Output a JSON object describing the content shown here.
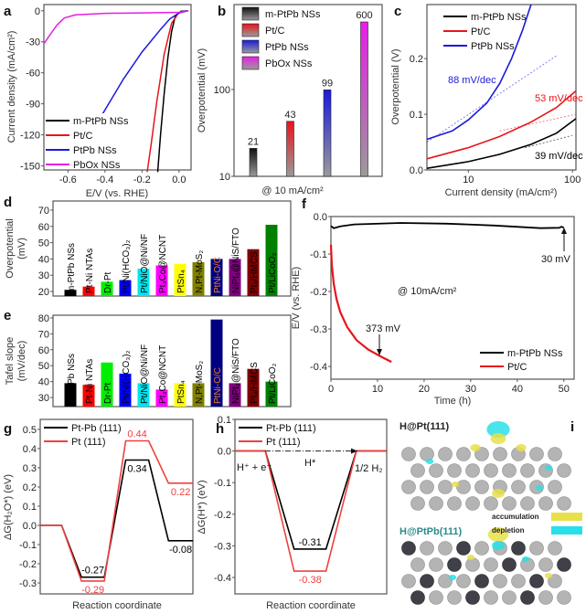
{
  "chart_data": [
    {
      "id": "a",
      "type": "line",
      "panel_label": "a",
      "xlabel": "E/V (vs. RHE)",
      "ylabel": "Current density (mA/cm²)",
      "xlim": [
        -0.73,
        0.065
      ],
      "ylim": [
        -154,
        6
      ],
      "xticks": [
        -0.6,
        -0.4,
        -0.2,
        0.0
      ],
      "xtick_labels": [
        "-0.6",
        "-0.4",
        "-0.2",
        "0.0"
      ],
      "yticks": [
        0,
        -30,
        -60,
        -90,
        -120,
        -150
      ],
      "ytick_labels": [
        "0",
        "-30",
        "-60",
        "-90",
        "-120",
        "-150"
      ],
      "legend": "bottom-left",
      "series": [
        {
          "name": "m-PtPb NSs",
          "color": "#000000",
          "points": [
            [
              0.05,
              0
            ],
            [
              0.01,
              -0.5
            ],
            [
              -0.02,
              -5
            ],
            [
              -0.04,
              -20
            ],
            [
              -0.06,
              -45
            ],
            [
              -0.08,
              -80
            ],
            [
              -0.1,
              -120
            ],
            [
              -0.115,
              -156
            ]
          ]
        },
        {
          "name": "Pt/C",
          "color": "#e8141b",
          "points": [
            [
              0.05,
              0
            ],
            [
              0.0,
              -1.5
            ],
            [
              -0.04,
              -12
            ],
            [
              -0.08,
              -42
            ],
            [
              -0.12,
              -88
            ],
            [
              -0.15,
              -128
            ],
            [
              -0.172,
              -156
            ]
          ]
        },
        {
          "name": "PtPb NSs",
          "color": "#1a1adc",
          "points": [
            [
              0.05,
              0
            ],
            [
              0.0,
              -2
            ],
            [
              -0.05,
              -8
            ],
            [
              -0.1,
              -18
            ],
            [
              -0.2,
              -40
            ],
            [
              -0.3,
              -66
            ],
            [
              -0.4,
              -96
            ],
            [
              -0.46,
              -114
            ]
          ]
        },
        {
          "name": "PbOx NSs",
          "color": "#e61ee6",
          "points": [
            [
              -0.73,
              -32
            ],
            [
              -0.7,
              -24
            ],
            [
              -0.66,
              -14
            ],
            [
              -0.62,
              -7
            ],
            [
              -0.56,
              -4
            ],
            [
              -0.4,
              -2.5
            ],
            [
              -0.2,
              -2
            ],
            [
              0.0,
              -1.5
            ],
            [
              0.05,
              0
            ]
          ]
        }
      ]
    },
    {
      "id": "b",
      "type": "bar",
      "panel_label": "b",
      "xlabel": "@ 10 mA/cm²",
      "ylabel": "Overpotential (mV)",
      "yscale": "log",
      "ylim": [
        10,
        950
      ],
      "yticks": [
        10,
        100
      ],
      "ytick_labels": [
        "10",
        "100"
      ],
      "legend": "top-left",
      "categories": [
        "m-PtPb NSs",
        "Pt/C",
        "PtPb NSs",
        "PbOx NSs"
      ],
      "values": [
        21,
        43,
        99,
        600
      ],
      "data_labels": [
        "21",
        "43",
        "99",
        "600"
      ],
      "colors": [
        "#111111",
        "#e8141b",
        "#1a1adc",
        "#e61ee6"
      ]
    },
    {
      "id": "c",
      "type": "line",
      "panel_label": "c",
      "xlabel": "Current density (mA/cm²)",
      "ylabel": "Overpotential (V)",
      "xscale": "log",
      "xlim": [
        4,
        108
      ],
      "ylim": [
        0,
        0.297
      ],
      "xticks": [
        10,
        100
      ],
      "xtick_labels": [
        "10",
        "100"
      ],
      "yticks": [
        0.0,
        0.1,
        0.2
      ],
      "ytick_labels": [
        "0.0",
        "0.1",
        "0.2"
      ],
      "legend": "top-left",
      "series": [
        {
          "name": "m-PtPb NSs",
          "color": "#000000",
          "tafel": "39 mV/dec",
          "points": [
            [
              4,
              0.003
            ],
            [
              10,
              0.015
            ],
            [
              20,
              0.028
            ],
            [
              40,
              0.046
            ],
            [
              70,
              0.066
            ],
            [
              108,
              0.092
            ]
          ],
          "fit": [
            [
              35,
              0.04
            ],
            [
              100,
              0.062
            ]
          ]
        },
        {
          "name": "Pt/C",
          "color": "#e8141b",
          "tafel": "53 mV/dec",
          "points": [
            [
              4,
              0.02
            ],
            [
              10,
              0.04
            ],
            [
              20,
              0.06
            ],
            [
              40,
              0.086
            ],
            [
              70,
              0.112
            ],
            [
              108,
              0.142
            ]
          ],
          "fit": [
            [
              20,
              0.07
            ],
            [
              108,
              0.1
            ]
          ]
        },
        {
          "name": "PtPb NSs",
          "color": "#1a1adc",
          "tafel": "88 mV/dec",
          "points": [
            [
              4,
              0.055
            ],
            [
              7,
              0.07
            ],
            [
              10,
              0.09
            ],
            [
              15,
              0.12
            ],
            [
              20,
              0.155
            ],
            [
              26,
              0.2
            ],
            [
              33,
              0.25
            ],
            [
              40,
              0.297
            ]
          ],
          "fit": [
            [
              4,
              0.05
            ],
            [
              70,
              0.205
            ]
          ]
        }
      ]
    },
    {
      "id": "d",
      "type": "bar",
      "panel_label": "d",
      "ylabel": [
        "Overpotential",
        "(mV)"
      ],
      "ylim": [
        17.2,
        75.6
      ],
      "yticks": [
        20,
        30,
        40,
        50,
        60,
        70
      ],
      "ytick_labels": [
        "20",
        "30",
        "40",
        "50",
        "60",
        "70"
      ],
      "categories": [
        "m-PtPb NSs",
        "Pt-Ni NTAs",
        "Dr-Pt",
        "Pt/Ni(HCO₃)₂",
        "Pt/NiO@Ni/NF",
        "Pt₃Co@NCNT",
        "PtSn₄",
        "N,Pt-MoS₂",
        "PtNi-O/C",
        "NiPt₃@NiS/FTO",
        "Pt₃/HMCS",
        "Pt/LiCoO₂"
      ],
      "values": [
        21,
        23,
        26,
        27,
        34,
        36,
        37,
        38,
        40,
        40,
        46,
        61
      ],
      "colors": [
        "#000000",
        "#ff0000",
        "#00ee00",
        "#0000ff",
        "#00e5ee",
        "#ff00ff",
        "#ffff00",
        "#808000",
        "#000080",
        "#800080",
        "#800000",
        "#008000"
      ],
      "label_colors": [
        "#000000",
        "#000000",
        "#000000",
        "#000000",
        "#000000",
        "#000000",
        "#000000",
        "#000000",
        "#f08020",
        "#000000",
        "#000000",
        "#000000"
      ]
    },
    {
      "id": "e",
      "type": "bar",
      "panel_label": "e",
      "ylabel": [
        "Tafel slope",
        "(mV/dec)"
      ],
      "ylim": [
        24.3,
        81.7
      ],
      "yticks": [
        30,
        40,
        50,
        60,
        70,
        80
      ],
      "ytick_labels": [
        "30",
        "40",
        "50",
        "60",
        "70",
        "80"
      ],
      "categories": [
        "m-PtPb NSs",
        "Pt-Ni NTAs",
        "Dr-Pt",
        "Pt/Ni(HCO₃)₂",
        "Pt/NiO@Ni/NF",
        "Pt₃Co@NCNT",
        "PtSn₄",
        "N,Pt-MoS₂",
        "PtNi-O/C",
        "NiPt₃@NiS/FTO",
        "Pt₃/HMCS",
        "Pt/LiCoO₂"
      ],
      "values": [
        39,
        38,
        52,
        45,
        39,
        35,
        39,
        39,
        79,
        39,
        48,
        40
      ],
      "colors": [
        "#000000",
        "#ff0000",
        "#00ee00",
        "#0000ff",
        "#00e5ee",
        "#ff00ff",
        "#ffff00",
        "#808000",
        "#000080",
        "#800080",
        "#800000",
        "#008000"
      ],
      "label_colors": [
        "#000000",
        "#000000",
        "#000000",
        "#000000",
        "#000000",
        "#000000",
        "#000000",
        "#000000",
        "#f08020",
        "#000000",
        "#000000",
        "#000000"
      ]
    },
    {
      "id": "f",
      "type": "line",
      "panel_label": "f",
      "xlabel": "Time (h)",
      "ylabel": "E/V (vs. RHE)",
      "xlim": [
        0,
        52.2
      ],
      "ylim": [
        -0.434,
        0
      ],
      "xticks": [
        0,
        10,
        20,
        30,
        40,
        50
      ],
      "xtick_labels": [
        "0",
        "10",
        "20",
        "30",
        "40",
        "50"
      ],
      "yticks": [
        0.0,
        -0.1,
        -0.2,
        -0.3,
        -0.4
      ],
      "ytick_labels": [
        "0.0",
        "-0.1",
        "-0.2",
        "-0.3",
        "-0.4"
      ],
      "legend": "bottom-right",
      "annotations": {
        "condition": "@ 10mA/cm²",
        "ptpb_final": "30 mV",
        "ptc_final": "373 mV"
      },
      "series": [
        {
          "name": "m-PtPb NSs",
          "color": "#000000",
          "points": [
            [
              0,
              -0.025
            ],
            [
              0.6,
              -0.031
            ],
            [
              2,
              -0.026
            ],
            [
              5,
              -0.021
            ],
            [
              15,
              -0.017
            ],
            [
              25,
              -0.019
            ],
            [
              35,
              -0.024
            ],
            [
              45,
              -0.031
            ],
            [
              49,
              -0.03
            ],
            [
              49.5,
              -0.027
            ],
            [
              50,
              -0.03
            ]
          ]
        },
        {
          "name": "Pt/C",
          "color": "#e8141b",
          "points": [
            [
              0,
              -0.075
            ],
            [
              0.2,
              -0.13
            ],
            [
              0.6,
              -0.18
            ],
            [
              1.2,
              -0.22
            ],
            [
              2,
              -0.255
            ],
            [
              3.5,
              -0.295
            ],
            [
              5.5,
              -0.33
            ],
            [
              8,
              -0.355
            ],
            [
              10.5,
              -0.372
            ],
            [
              13,
              -0.388
            ]
          ]
        }
      ]
    },
    {
      "id": "g",
      "type": "line",
      "panel_label": "g",
      "xlabel": "Reaction coordinate",
      "ylabel": "ΔG(H₂O*) (eV)",
      "ylim": [
        -0.357,
        0.552
      ],
      "yticks": [
        0.5,
        0.4,
        0.3,
        0.2,
        0.1,
        0.0,
        -0.1,
        -0.2,
        -0.3
      ],
      "ytick_labels": [
        "0.5",
        "0.4",
        "0.3",
        "0.2",
        "0.1",
        "0.0",
        "-0.1",
        "-0.2",
        "-0.3"
      ],
      "legend": "top-left",
      "series": [
        {
          "name": "Pt-Pb (111)",
          "color": "#000000",
          "levels": [
            0,
            -0.27,
            0.34,
            -0.08
          ],
          "value_labels": [
            null,
            "-0.27",
            "0.34",
            "-0.08"
          ]
        },
        {
          "name": "Pt (111)",
          "color": "#f04040",
          "levels": [
            0,
            -0.29,
            0.44,
            0.22
          ],
          "value_labels": [
            null,
            "-0.29",
            "0.44",
            "0.22"
          ]
        }
      ]
    },
    {
      "id": "h",
      "type": "line",
      "panel_label": "h",
      "xlabel": "Reaction coordinate",
      "ylabel": "ΔG(H*) (eV)",
      "ylim": [
        -0.452,
        0.1
      ],
      "yticks": [
        0.1,
        0.0,
        -0.1,
        -0.2,
        -0.3,
        -0.4
      ],
      "ytick_labels": [
        "0.1",
        "0.0",
        "-0.1",
        "-0.2",
        "-0.3",
        "-0.4"
      ],
      "legend": "top-left",
      "states": [
        "H⁺ + e⁻",
        "H*",
        "1/2 H₂"
      ],
      "series": [
        {
          "name": "Pt-Pb (111)",
          "color": "#000000",
          "levels": [
            0,
            -0.31,
            0
          ],
          "value_labels": [
            null,
            "-0.31",
            null
          ]
        },
        {
          "name": "Pt (111)",
          "color": "#f04040",
          "levels": [
            0,
            -0.38,
            0
          ],
          "value_labels": [
            null,
            "-0.38",
            null
          ]
        }
      ]
    }
  ],
  "panel_i": {
    "panel_label": "i",
    "top_title": "H@Pt(111)",
    "bottom_title": "H@PtPb(111)",
    "legend": [
      {
        "label": "accumulation",
        "color": "#e8e04a"
      },
      {
        "label": "depletion",
        "color": "#28e0e8"
      }
    ]
  }
}
